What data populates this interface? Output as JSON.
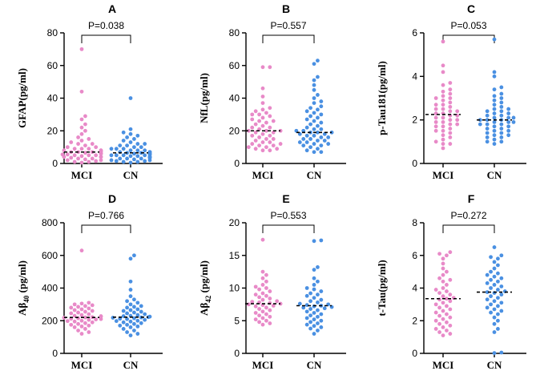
{
  "chart_data": [
    {
      "type": "scatter",
      "panel": "A",
      "ylabel": "GFAP(pg/ml)",
      "ylim": [
        0,
        80
      ],
      "yticks": [
        0,
        20,
        40,
        60,
        80
      ],
      "categories": [
        "MCI",
        "CN"
      ],
      "pvalue": "P=0.038",
      "colors": {
        "MCI": "#e88ac8",
        "CN": "#4a90e2"
      },
      "medians": [
        7,
        6.5
      ],
      "series": [
        {
          "name": "MCI",
          "values": [
            70,
            44,
            29,
            27,
            24,
            22,
            20,
            18,
            16,
            15,
            14,
            13,
            12,
            12,
            11,
            10,
            10,
            9,
            9,
            9,
            8,
            8,
            8,
            7.5,
            7,
            7,
            7,
            7,
            6.5,
            6,
            6,
            6,
            6,
            5.5,
            5.5,
            5,
            5,
            5,
            4.5,
            4,
            4,
            4,
            3.5,
            3,
            3,
            2.5,
            2,
            2,
            1.5,
            1,
            1,
            0.5
          ]
        },
        {
          "name": "CN",
          "values": [
            40,
            21,
            19,
            18,
            17,
            16,
            15,
            14,
            13,
            12,
            12,
            11,
            11,
            10,
            10,
            9,
            9,
            9,
            8,
            8,
            8,
            7,
            7,
            7,
            7,
            6.5,
            6.5,
            6,
            6,
            6,
            5.5,
            5.5,
            5,
            5,
            5,
            5,
            4.5,
            4.5,
            4,
            4,
            4,
            3.5,
            3.5,
            3,
            3,
            3,
            2.5,
            2,
            2,
            1.5,
            1.5,
            1,
            1,
            0.5
          ]
        }
      ]
    },
    {
      "type": "scatter",
      "panel": "B",
      "ylabel": "NfL(pg/ml)",
      "ylim": [
        0,
        80
      ],
      "yticks": [
        0,
        20,
        40,
        60,
        80
      ],
      "categories": [
        "MCI",
        "CN"
      ],
      "pvalue": "P=0.557",
      "colors": {
        "MCI": "#e88ac8",
        "CN": "#4a90e2"
      },
      "medians": [
        20,
        19
      ],
      "series": [
        {
          "name": "MCI",
          "values": [
            59,
            59,
            46,
            41,
            37,
            34,
            33,
            32,
            31,
            30,
            30,
            29,
            28,
            27,
            26,
            26,
            25,
            24,
            23,
            22,
            22,
            21,
            20,
            20,
            20,
            19,
            19,
            18,
            17,
            17,
            16,
            15,
            15,
            14,
            13,
            13,
            12,
            12,
            11,
            11,
            10,
            10,
            9,
            9,
            8,
            8
          ]
        },
        {
          "name": "CN",
          "values": [
            63,
            61,
            53,
            51,
            48,
            45,
            42,
            40,
            38,
            37,
            35,
            34,
            33,
            32,
            31,
            30,
            29,
            28,
            27,
            26,
            25,
            24,
            23,
            22,
            21,
            21,
            20,
            20,
            19,
            19,
            19,
            18,
            18,
            17,
            17,
            16,
            16,
            15,
            15,
            14,
            14,
            13,
            13,
            12,
            12,
            11,
            11,
            10,
            9,
            8,
            7,
            7
          ]
        }
      ]
    },
    {
      "type": "scatter",
      "panel": "C",
      "ylabel": "p-Tau181(pg/ml)",
      "ylim": [
        0,
        6
      ],
      "yticks": [
        0,
        2,
        4,
        6
      ],
      "categories": [
        "MCI",
        "CN"
      ],
      "pvalue": "P=0.053",
      "colors": {
        "MCI": "#e88ac8",
        "CN": "#4a90e2"
      },
      "medians": [
        2.25,
        2.0
      ],
      "series": [
        {
          "name": "MCI",
          "values": [
            5.6,
            4.5,
            4.2,
            3.7,
            3.6,
            3.4,
            3.3,
            3.2,
            3.1,
            3.0,
            3.0,
            2.9,
            2.8,
            2.7,
            2.7,
            2.6,
            2.5,
            2.5,
            2.4,
            2.4,
            2.3,
            2.3,
            2.2,
            2.2,
            2.1,
            2.1,
            2.0,
            2.0,
            1.9,
            1.9,
            1.8,
            1.8,
            1.7,
            1.7,
            1.6,
            1.5,
            1.5,
            1.4,
            1.3,
            1.2,
            1.1,
            1.0,
            0.9,
            0.9,
            0.7
          ]
        },
        {
          "name": "CN",
          "values": [
            5.7,
            4.2,
            4.0,
            3.5,
            3.4,
            3.2,
            3.1,
            3.0,
            2.9,
            2.8,
            2.7,
            2.6,
            2.5,
            2.5,
            2.4,
            2.4,
            2.3,
            2.3,
            2.2,
            2.2,
            2.1,
            2.1,
            2.1,
            2.0,
            2.0,
            2.0,
            1.9,
            1.9,
            1.9,
            1.8,
            1.8,
            1.8,
            1.7,
            1.7,
            1.6,
            1.6,
            1.5,
            1.5,
            1.4,
            1.4,
            1.3,
            1.3,
            1.2,
            1.2,
            1.1,
            1.0,
            1.0,
            0.9
          ]
        }
      ]
    },
    {
      "type": "scatter",
      "panel": "D",
      "ylabel_main": "Aβ",
      "ylabel_sub": "40",
      "ylabel_unit": " (pg/ml)",
      "ylim": [
        0,
        800
      ],
      "yticks": [
        0,
        200,
        400,
        600,
        800
      ],
      "categories": [
        "MCI",
        "CN"
      ],
      "pvalue": "P=0.766",
      "colors": {
        "MCI": "#e88ac8",
        "CN": "#4a90e2"
      },
      "medians": [
        220,
        222
      ],
      "series": [
        {
          "name": "MCI",
          "values": [
            630,
            310,
            305,
            300,
            295,
            290,
            285,
            280,
            275,
            270,
            265,
            260,
            255,
            250,
            245,
            240,
            235,
            230,
            228,
            225,
            222,
            220,
            218,
            215,
            212,
            210,
            208,
            205,
            200,
            198,
            195,
            190,
            185,
            180,
            175,
            170,
            165,
            160,
            150,
            140,
            130,
            120
          ]
        },
        {
          "name": "CN",
          "values": [
            600,
            580,
            440,
            390,
            350,
            330,
            320,
            310,
            300,
            290,
            285,
            280,
            270,
            265,
            260,
            255,
            250,
            245,
            240,
            235,
            230,
            228,
            225,
            222,
            220,
            218,
            215,
            212,
            210,
            205,
            200,
            198,
            195,
            190,
            185,
            180,
            175,
            170,
            165,
            160,
            150,
            140,
            130,
            120,
            110
          ]
        }
      ]
    },
    {
      "type": "scatter",
      "panel": "E",
      "ylabel_main": "Aβ",
      "ylabel_sub": "42",
      "ylabel_unit": " (pg/ml)",
      "ylim": [
        0,
        20
      ],
      "yticks": [
        0,
        5,
        10,
        15,
        20
      ],
      "categories": [
        "MCI",
        "CN"
      ],
      "pvalue": "P=0.553",
      "colors": {
        "MCI": "#e88ac8",
        "CN": "#4a90e2"
      },
      "medians": [
        7.6,
        7.3
      ],
      "series": [
        {
          "name": "MCI",
          "values": [
            17.4,
            12.5,
            12.0,
            11.5,
            11.0,
            10.5,
            10.2,
            10.0,
            9.8,
            9.5,
            9.2,
            9.0,
            8.8,
            8.6,
            8.4,
            8.2,
            8.0,
            7.9,
            7.8,
            7.7,
            7.6,
            7.5,
            7.4,
            7.3,
            7.2,
            7.0,
            6.8,
            6.6,
            6.4,
            6.2,
            6.0,
            5.8,
            5.6,
            5.4,
            5.2,
            5.0,
            4.8,
            4.6,
            4.4
          ]
        },
        {
          "name": "CN",
          "values": [
            17.3,
            17.2,
            13.2,
            12.8,
            11.5,
            11.0,
            10.5,
            10.0,
            9.8,
            9.5,
            9.2,
            9.0,
            8.8,
            8.5,
            8.2,
            8.0,
            7.8,
            7.6,
            7.5,
            7.4,
            7.3,
            7.2,
            7.1,
            7.0,
            6.9,
            6.8,
            6.6,
            6.4,
            6.2,
            6.0,
            5.8,
            5.6,
            5.4,
            5.2,
            5.0,
            4.8,
            4.6,
            4.4,
            4.2,
            4.0,
            3.8,
            3.5,
            3.0
          ]
        }
      ]
    },
    {
      "type": "scatter",
      "panel": "F",
      "ylabel": "t-Tau(pg/ml)",
      "ylim": [
        0,
        8
      ],
      "yticks": [
        0,
        2,
        4,
        6,
        8
      ],
      "categories": [
        "MCI",
        "CN"
      ],
      "pvalue": "P=0.272",
      "colors": {
        "MCI": "#e88ac8",
        "CN": "#4a90e2"
      },
      "medians": [
        3.35,
        3.75
      ],
      "series": [
        {
          "name": "MCI",
          "values": [
            6.2,
            6.1,
            6.0,
            5.8,
            5.5,
            5.2,
            5.0,
            4.8,
            4.6,
            4.5,
            4.4,
            4.2,
            4.0,
            3.9,
            3.8,
            3.7,
            3.6,
            3.5,
            3.4,
            3.35,
            3.3,
            3.2,
            3.1,
            3.0,
            2.9,
            2.8,
            2.7,
            2.6,
            2.5,
            2.4,
            2.3,
            2.2,
            2.1,
            2.0,
            1.9,
            1.8,
            1.7,
            1.6,
            1.5,
            1.4,
            1.3,
            1.2,
            1.1
          ]
        },
        {
          "name": "CN",
          "values": [
            6.5,
            6.0,
            5.9,
            5.8,
            5.6,
            5.4,
            5.2,
            5.0,
            4.9,
            4.8,
            4.7,
            4.6,
            4.5,
            4.4,
            4.3,
            4.2,
            4.1,
            4.0,
            3.9,
            3.8,
            3.75,
            3.7,
            3.6,
            3.5,
            3.4,
            3.3,
            3.2,
            3.1,
            3.0,
            2.9,
            2.8,
            2.7,
            2.6,
            2.5,
            2.4,
            2.2,
            2.0,
            1.8,
            1.5,
            1.3,
            0.05,
            0.02
          ]
        }
      ]
    }
  ]
}
